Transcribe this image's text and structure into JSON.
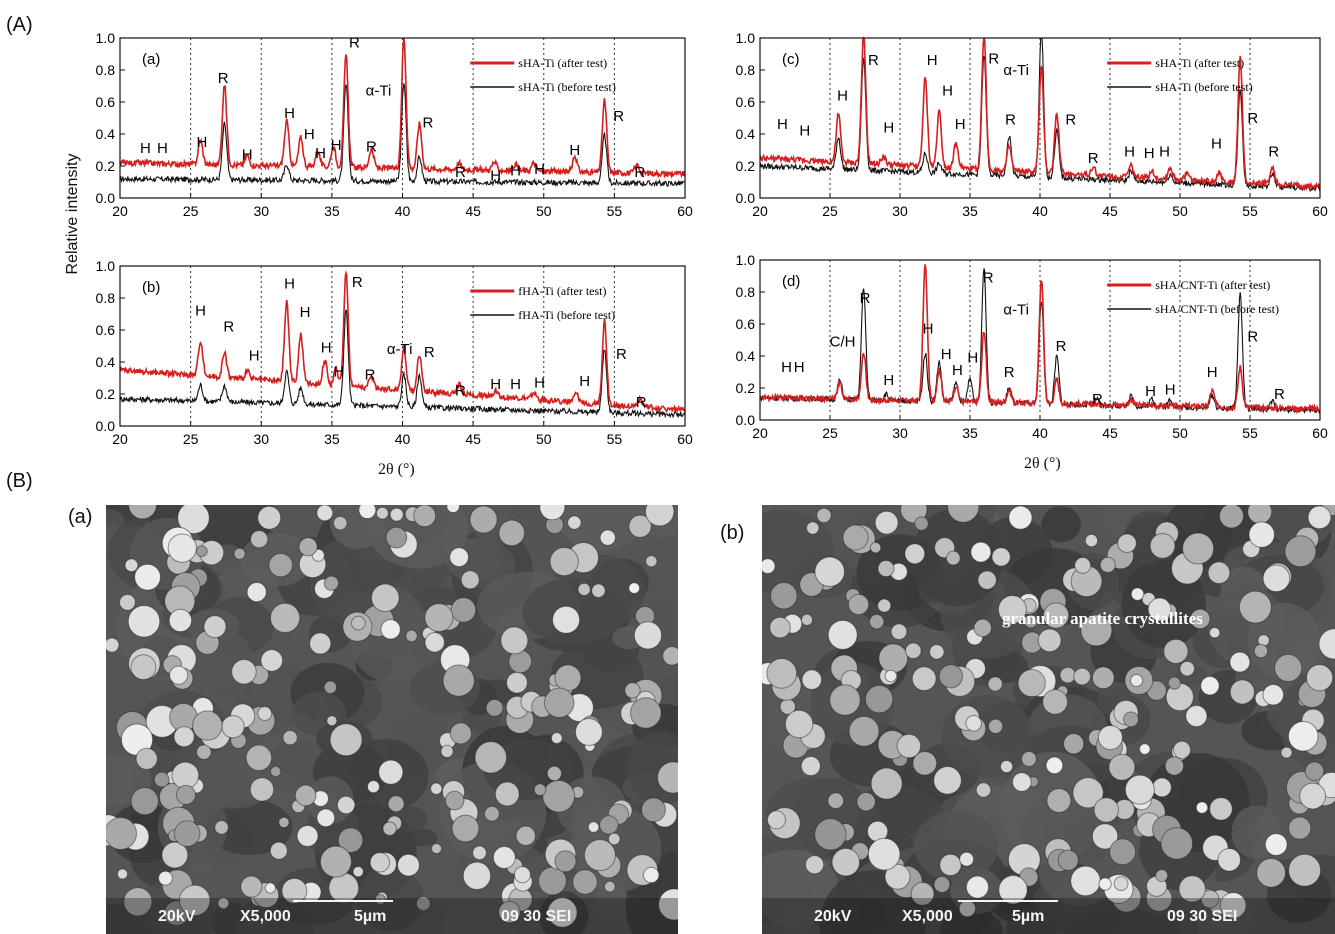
{
  "labels": {
    "section_a": "(A)",
    "section_b": "(B)",
    "ylabel": "Relative intensity",
    "xlabel": "2θ (°)"
  },
  "colors": {
    "after": "#d42020",
    "before": "#111111"
  },
  "chart_data": [
    {
      "type": "line",
      "panel_label": "(a)",
      "xlim": [
        20,
        60
      ],
      "ylim": [
        0,
        1.0
      ],
      "xticks": [
        20,
        25,
        30,
        35,
        40,
        45,
        50,
        55,
        60
      ],
      "yticks": [
        "0.0",
        "0.2",
        "0.4",
        "0.6",
        "0.8",
        "1.0"
      ],
      "grid": "dotted vertical at 25, 30, 35, 40, 45, 50, 55",
      "legend_position": "top-right",
      "baseline": {
        "after": 0.22,
        "before": 0.12,
        "after_end": 0.15,
        "before_end": 0.09
      },
      "series": [
        {
          "name": "sHA-Ti (after test)",
          "color": "#d42020",
          "peaks": [
            [
              25.7,
              0.15
            ],
            [
              27.4,
              0.5
            ],
            [
              29,
              0.06
            ],
            [
              31.8,
              0.28
            ],
            [
              32.8,
              0.18
            ],
            [
              34,
              0.1
            ],
            [
              35.1,
              0.13
            ],
            [
              36,
              0.7
            ],
            [
              37.8,
              0.12
            ],
            [
              40.1,
              0.82
            ],
            [
              41.2,
              0.28
            ],
            [
              44,
              0.04
            ],
            [
              46.5,
              0.05
            ],
            [
              48,
              0.04
            ],
            [
              49.3,
              0.05
            ],
            [
              52.2,
              0.1
            ],
            [
              54.3,
              0.45
            ],
            [
              56.6,
              0.05
            ]
          ]
        },
        {
          "name": "sHA-Ti (before test)",
          "color": "#111111",
          "peaks": [
            [
              27.4,
              0.35
            ],
            [
              31.8,
              0.1
            ],
            [
              36,
              0.6
            ],
            [
              40.1,
              0.62
            ],
            [
              41.2,
              0.15
            ],
            [
              54.3,
              0.3
            ]
          ]
        }
      ],
      "annotations": [
        {
          "text": "H",
          "x": 21.8,
          "y": 0.28
        },
        {
          "text": "H",
          "x": 23,
          "y": 0.28
        },
        {
          "text": "H",
          "x": 25.8,
          "y": 0.32
        },
        {
          "text": "R",
          "x": 27.3,
          "y": 0.72
        },
        {
          "text": "H",
          "x": 29,
          "y": 0.24
        },
        {
          "text": "H",
          "x": 32,
          "y": 0.5
        },
        {
          "text": "H",
          "x": 33.4,
          "y": 0.37
        },
        {
          "text": "H",
          "x": 34.2,
          "y": 0.25
        },
        {
          "text": "H",
          "x": 35.3,
          "y": 0.3
        },
        {
          "text": "R",
          "x": 36.6,
          "y": 0.94
        },
        {
          "text": "α-Ti",
          "x": 38.3,
          "y": 0.64
        },
        {
          "text": "R",
          "x": 41.8,
          "y": 0.44
        },
        {
          "text": "R",
          "x": 37.8,
          "y": 0.29
        },
        {
          "text": "R",
          "x": 44.1,
          "y": 0.13
        },
        {
          "text": "H",
          "x": 46.6,
          "y": 0.11
        },
        {
          "text": "H",
          "x": 48,
          "y": 0.14
        },
        {
          "text": "H",
          "x": 49.7,
          "y": 0.15
        },
        {
          "text": "H",
          "x": 52.2,
          "y": 0.27
        },
        {
          "text": "R",
          "x": 55.3,
          "y": 0.48
        },
        {
          "text": "R",
          "x": 56.8,
          "y": 0.13
        }
      ]
    },
    {
      "type": "line",
      "panel_label": "(b)",
      "xlim": [
        20,
        60
      ],
      "ylim": [
        0,
        1.0
      ],
      "xticks": [
        20,
        25,
        30,
        35,
        40,
        45,
        50,
        55,
        60
      ],
      "yticks": [
        "0.0",
        "0.2",
        "0.4",
        "0.6",
        "0.8",
        "1.0"
      ],
      "grid": "dotted vertical at 25, 30, 35, 40, 45, 50, 55",
      "legend_position": "top-right",
      "baseline": {
        "after": 0.35,
        "before": 0.17,
        "after_end": 0.1,
        "before_end": 0.07
      },
      "series": [
        {
          "name": "fHA-Ti (after test)",
          "color": "#d42020",
          "peaks": [
            [
              25.7,
              0.22
            ],
            [
              27.4,
              0.15
            ],
            [
              29,
              0.05
            ],
            [
              31.8,
              0.5
            ],
            [
              32.8,
              0.3
            ],
            [
              34.5,
              0.15
            ],
            [
              35.3,
              0.1
            ],
            [
              36,
              0.72
            ],
            [
              37.8,
              0.07
            ],
            [
              40.1,
              0.27
            ],
            [
              41.2,
              0.23
            ],
            [
              44,
              0.06
            ],
            [
              46.6,
              0.04
            ],
            [
              49.3,
              0.04
            ],
            [
              52.3,
              0.05
            ],
            [
              54.3,
              0.52
            ],
            [
              56.8,
              0.05
            ]
          ]
        },
        {
          "name": "fHA-Ti (before test)",
          "color": "#111111",
          "peaks": [
            [
              25.7,
              0.1
            ],
            [
              27.4,
              0.1
            ],
            [
              31.8,
              0.2
            ],
            [
              32.8,
              0.1
            ],
            [
              36,
              0.6
            ],
            [
              40.1,
              0.2
            ],
            [
              41.2,
              0.2
            ],
            [
              54.3,
              0.4
            ]
          ]
        }
      ],
      "annotations": [
        {
          "text": "H",
          "x": 25.7,
          "y": 0.69
        },
        {
          "text": "R",
          "x": 27.7,
          "y": 0.59
        },
        {
          "text": "H",
          "x": 29.5,
          "y": 0.41
        },
        {
          "text": "H",
          "x": 32,
          "y": 0.86
        },
        {
          "text": "H",
          "x": 33.1,
          "y": 0.68
        },
        {
          "text": "H",
          "x": 34.6,
          "y": 0.46
        },
        {
          "text": "H",
          "x": 35.5,
          "y": 0.31
        },
        {
          "text": "R",
          "x": 36.8,
          "y": 0.87
        },
        {
          "text": "α-Ti",
          "x": 39.8,
          "y": 0.45
        },
        {
          "text": "R",
          "x": 41.9,
          "y": 0.43
        },
        {
          "text": "R",
          "x": 37.7,
          "y": 0.29
        },
        {
          "text": "R",
          "x": 44.1,
          "y": 0.19
        },
        {
          "text": "H",
          "x": 46.6,
          "y": 0.23
        },
        {
          "text": "H",
          "x": 48,
          "y": 0.23
        },
        {
          "text": "H",
          "x": 49.7,
          "y": 0.24
        },
        {
          "text": "H",
          "x": 52.9,
          "y": 0.25
        },
        {
          "text": "R",
          "x": 55.5,
          "y": 0.42
        },
        {
          "text": "R",
          "x": 56.9,
          "y": 0.12
        }
      ]
    },
    {
      "type": "line",
      "panel_label": "(c)",
      "xlim": [
        20,
        60
      ],
      "ylim": [
        0,
        1.0
      ],
      "xticks": [
        20,
        25,
        30,
        35,
        40,
        45,
        50,
        55,
        60
      ],
      "yticks": [
        "0.0",
        "0.2",
        "0.4",
        "0.6",
        "0.8",
        "1.0"
      ],
      "grid": "dotted vertical at 25, 30, 35, 40, 45, 50, 55",
      "legend_position": "top-right",
      "baseline": {
        "after": 0.25,
        "before": 0.2,
        "after_end": 0.07,
        "before_end": 0.06
      },
      "series": [
        {
          "name": "sHA-Ti (after test)",
          "color": "#d42020",
          "peaks": [
            [
              25.6,
              0.3
            ],
            [
              27.4,
              0.8
            ],
            [
              28.8,
              0.05
            ],
            [
              31.8,
              0.55
            ],
            [
              32.8,
              0.35
            ],
            [
              34,
              0.15
            ],
            [
              36,
              0.85
            ],
            [
              37.8,
              0.15
            ],
            [
              40.1,
              0.65
            ],
            [
              41.2,
              0.38
            ],
            [
              43.8,
              0.05
            ],
            [
              46.5,
              0.07
            ],
            [
              48,
              0.05
            ],
            [
              49.3,
              0.07
            ],
            [
              50.5,
              0.04
            ],
            [
              52.8,
              0.06
            ],
            [
              54.3,
              0.78
            ],
            [
              56.6,
              0.1
            ]
          ]
        },
        {
          "name": "sHA-Ti (before test)",
          "color": "#111111",
          "peaks": [
            [
              25.6,
              0.2
            ],
            [
              27.4,
              0.7
            ],
            [
              31.8,
              0.12
            ],
            [
              32.8,
              0.06
            ],
            [
              36,
              0.75
            ],
            [
              37.8,
              0.25
            ],
            [
              40.1,
              0.92
            ],
            [
              41.2,
              0.3
            ],
            [
              46.5,
              0.06
            ],
            [
              49.3,
              0.05
            ],
            [
              54.3,
              0.6
            ],
            [
              56.6,
              0.08
            ]
          ]
        }
      ],
      "annotations": [
        {
          "text": "H",
          "x": 21.6,
          "y": 0.43
        },
        {
          "text": "H",
          "x": 23.2,
          "y": 0.39
        },
        {
          "text": "H",
          "x": 25.9,
          "y": 0.61
        },
        {
          "text": "R",
          "x": 28.1,
          "y": 0.83
        },
        {
          "text": "H",
          "x": 29.2,
          "y": 0.41
        },
        {
          "text": "H",
          "x": 32.3,
          "y": 0.83
        },
        {
          "text": "H",
          "x": 33.4,
          "y": 0.64
        },
        {
          "text": "H",
          "x": 34.3,
          "y": 0.43
        },
        {
          "text": "R",
          "x": 36.7,
          "y": 0.84
        },
        {
          "text": "α-Ti",
          "x": 38.3,
          "y": 0.77
        },
        {
          "text": "R",
          "x": 37.9,
          "y": 0.46
        },
        {
          "text": "R",
          "x": 42.2,
          "y": 0.46
        },
        {
          "text": "R",
          "x": 43.8,
          "y": 0.22
        },
        {
          "text": "H",
          "x": 46.4,
          "y": 0.26
        },
        {
          "text": "H",
          "x": 47.8,
          "y": 0.25
        },
        {
          "text": "H",
          "x": 48.9,
          "y": 0.26
        },
        {
          "text": "H",
          "x": 52.6,
          "y": 0.31
        },
        {
          "text": "R",
          "x": 55.2,
          "y": 0.47
        },
        {
          "text": "R",
          "x": 56.7,
          "y": 0.26
        }
      ]
    },
    {
      "type": "line",
      "panel_label": "(d)",
      "xlim": [
        20,
        60
      ],
      "ylim": [
        0,
        1.0
      ],
      "xticks": [
        20,
        25,
        30,
        35,
        40,
        45,
        50,
        55,
        60
      ],
      "yticks": [
        "0.0",
        "0.2",
        "0.4",
        "0.6",
        "0.8",
        "1.0"
      ],
      "grid": "dotted vertical at 25, 30, 35, 40, 45, 50, 55",
      "legend_position": "top-right",
      "baseline": {
        "after": 0.14,
        "before": 0.14,
        "after_end": 0.07,
        "before_end": 0.06
      },
      "series": [
        {
          "name": "sHA/CNT-Ti (after test)",
          "color": "#d42020",
          "peaks": [
            [
              25.7,
              0.1
            ],
            [
              27.4,
              0.3
            ],
            [
              31.8,
              0.85
            ],
            [
              32.8,
              0.2
            ],
            [
              34,
              0.1
            ],
            [
              36,
              0.45
            ],
            [
              37.8,
              0.08
            ],
            [
              40.1,
              0.78
            ],
            [
              41.2,
              0.15
            ],
            [
              46.5,
              0.04
            ],
            [
              52.3,
              0.1
            ],
            [
              54.3,
              0.25
            ]
          ]
        },
        {
          "name": "sHA/CNT-Ti (before test)",
          "color": "#111111",
          "peaks": [
            [
              25.7,
              0.12
            ],
            [
              27.4,
              0.7
            ],
            [
              29,
              0.04
            ],
            [
              31.8,
              0.3
            ],
            [
              32.8,
              0.25
            ],
            [
              34,
              0.12
            ],
            [
              35,
              0.15
            ],
            [
              36,
              0.85
            ],
            [
              37.8,
              0.1
            ],
            [
              40.1,
              0.65
            ],
            [
              41.2,
              0.3
            ],
            [
              44,
              0.04
            ],
            [
              46.5,
              0.06
            ],
            [
              48,
              0.05
            ],
            [
              49.3,
              0.05
            ],
            [
              52.3,
              0.08
            ],
            [
              54.3,
              0.72
            ],
            [
              56.6,
              0.05
            ]
          ]
        }
      ],
      "annotations": [
        {
          "text": "H",
          "x": 21.9,
          "y": 0.3
        },
        {
          "text": "H",
          "x": 22.8,
          "y": 0.3
        },
        {
          "text": "C/H",
          "x": 25.9,
          "y": 0.46
        },
        {
          "text": "R",
          "x": 27.5,
          "y": 0.73
        },
        {
          "text": "H",
          "x": 29.2,
          "y": 0.22
        },
        {
          "text": "H",
          "x": 32,
          "y": 0.54
        },
        {
          "text": "H",
          "x": 33.3,
          "y": 0.38
        },
        {
          "text": "H",
          "x": 34.1,
          "y": 0.28
        },
        {
          "text": "H",
          "x": 35.2,
          "y": 0.36
        },
        {
          "text": "R",
          "x": 36.3,
          "y": 0.86
        },
        {
          "text": "α-Ti",
          "x": 38.3,
          "y": 0.66
        },
        {
          "text": "R",
          "x": 37.8,
          "y": 0.27
        },
        {
          "text": "R",
          "x": 41.5,
          "y": 0.43
        },
        {
          "text": "R",
          "x": 44.1,
          "y": 0.1
        },
        {
          "text": "H",
          "x": 47.9,
          "y": 0.15
        },
        {
          "text": "H",
          "x": 49.3,
          "y": 0.16
        },
        {
          "text": "H",
          "x": 52.3,
          "y": 0.27
        },
        {
          "text": "R",
          "x": 55.2,
          "y": 0.49
        },
        {
          "text": "R",
          "x": 57.1,
          "y": 0.13
        }
      ]
    }
  ],
  "micrographs": [
    {
      "panel_label": "(a)",
      "accel": "20kV",
      "mag": "X5,000",
      "scale": "5µm",
      "code": "09 30 SEI",
      "annotation": ""
    },
    {
      "panel_label": "(b)",
      "accel": "20kV",
      "mag": "X5,000",
      "scale": "5µm",
      "code": "09 30 SEI",
      "annotation": "granular apatite crystallites"
    }
  ]
}
